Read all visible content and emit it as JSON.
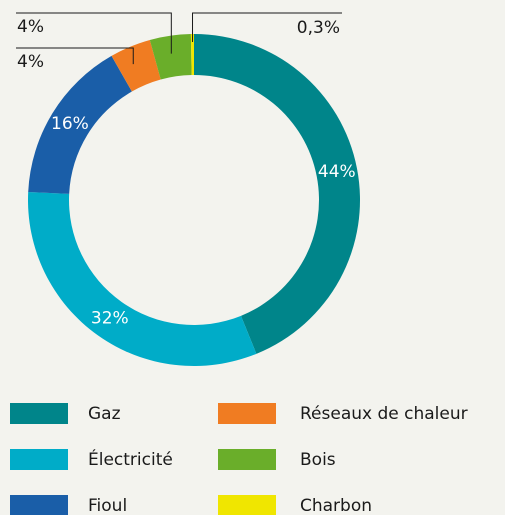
{
  "chart_data": {
    "type": "donut",
    "categories": [
      "Gaz",
      "Électricité",
      "Fioul",
      "Réseaux de chaleur",
      "Bois",
      "Charbon"
    ],
    "values": [
      44,
      32,
      16,
      4,
      4,
      0.3
    ],
    "value_labels": [
      "44%",
      "32%",
      "16%",
      "4%",
      "4%",
      "0,3%"
    ],
    "colors": [
      "#00858a",
      "#00acc8",
      "#1a5ea8",
      "#f07c22",
      "#6aae2a",
      "#f0e600"
    ],
    "legend": "bottom"
  }
}
